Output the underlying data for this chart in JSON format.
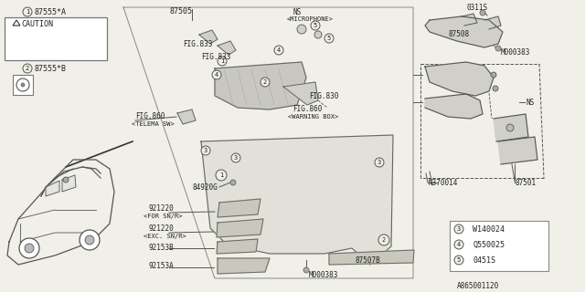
{
  "bg_color": "#f0efe8",
  "line_color": "#555555",
  "dark_line": "#333333",
  "text_color": "#222222",
  "diagram_code": "A865001120",
  "legend_items": [
    {
      "num": "3",
      "code": "W140024"
    },
    {
      "num": "4",
      "code": "Q550025"
    },
    {
      "num": "5",
      "code": "0451S"
    }
  ]
}
